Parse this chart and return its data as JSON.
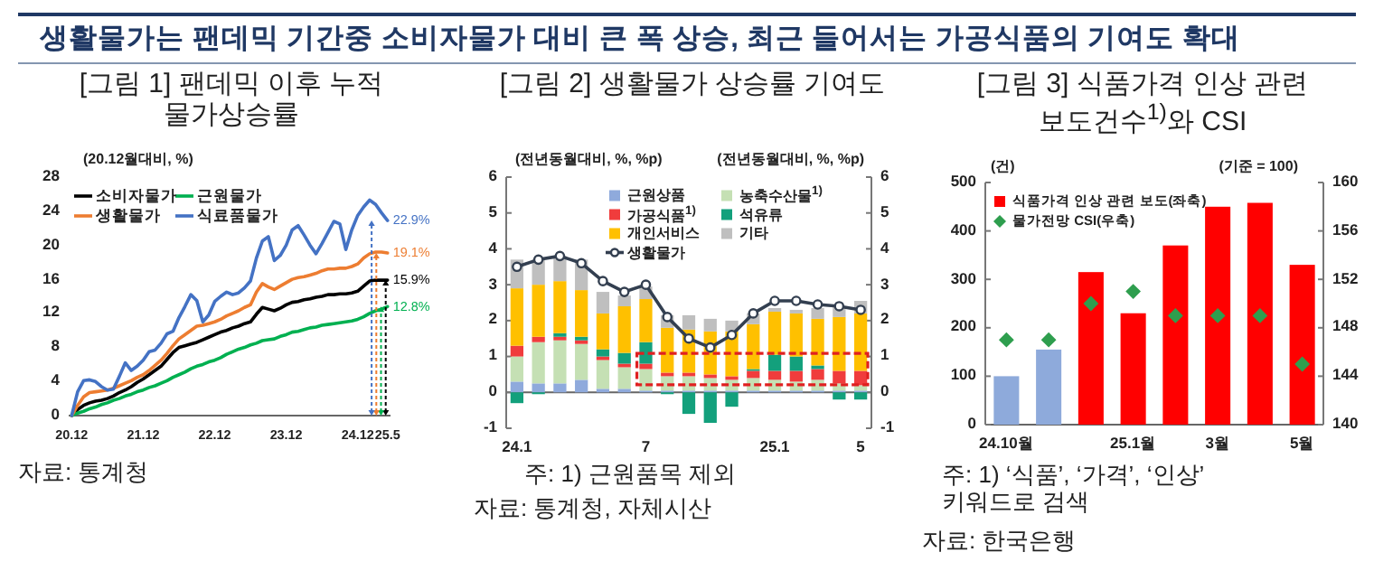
{
  "chart_data": [
    {
      "type": "other",
      "title": "생활물가는 팬데믹 기간중 소비자물가 대비 큰 폭 상승, 최근 들어서는 가공식품의 기여도 확대"
    },
    {
      "type": "line",
      "title": "[그림 1] 팬데믹 이후 누적 물가상승률",
      "ylabel": "(20.12월대비, %)",
      "categories": [
        "20.12",
        null,
        null,
        null,
        null,
        null,
        null,
        null,
        null,
        null,
        null,
        null,
        "21.12",
        null,
        null,
        null,
        null,
        null,
        null,
        null,
        null,
        null,
        null,
        null,
        "22.12",
        null,
        null,
        null,
        null,
        null,
        null,
        null,
        null,
        null,
        null,
        null,
        "23.12",
        null,
        null,
        null,
        null,
        null,
        null,
        null,
        null,
        null,
        null,
        null,
        "24.12",
        null,
        null,
        null,
        null,
        "25.5"
      ],
      "ylim": [
        0,
        28
      ],
      "yticks": [
        0,
        4,
        8,
        12,
        16,
        20,
        24,
        28
      ],
      "legend": "top left",
      "annotations": [
        "자료: 통계청"
      ],
      "series": [
        {
          "name": "소비자물가",
          "color": "#000000",
          "values": [
            0,
            0.7,
            1.2,
            1.5,
            1.7,
            1.8,
            2.0,
            2.3,
            2.7,
            3.0,
            3.4,
            3.9,
            4.3,
            4.8,
            5.3,
            5.8,
            6.6,
            7.4,
            8.0,
            8.2,
            8.4,
            8.6,
            8.9,
            9.2,
            9.5,
            9.8,
            10.0,
            10.3,
            10.5,
            10.8,
            11.0,
            11.9,
            12.7,
            12.5,
            12.3,
            12.6,
            13.0,
            13.3,
            13.4,
            13.6,
            13.7,
            13.9,
            14.0,
            14.2,
            14.2,
            14.3,
            14.3,
            14.4,
            14.6,
            15.2,
            15.8,
            15.9,
            15.9,
            15.9
          ],
          "value_labels": [
            null,
            null,
            null,
            null,
            null,
            null,
            null,
            null,
            null,
            null,
            null,
            null,
            null,
            null,
            null,
            null,
            null,
            null,
            null,
            null,
            null,
            null,
            null,
            null,
            null,
            null,
            null,
            null,
            null,
            null,
            null,
            null,
            null,
            null,
            null,
            null,
            null,
            null,
            null,
            null,
            null,
            null,
            null,
            null,
            null,
            null,
            null,
            null,
            null,
            null,
            null,
            null,
            null,
            "15.9%"
          ]
        },
        {
          "name": "근원물가",
          "color": "#00b050",
          "values": [
            0,
            0.3,
            0.5,
            0.8,
            1.0,
            1.3,
            1.5,
            1.8,
            2.0,
            2.3,
            2.5,
            2.8,
            3.0,
            3.3,
            3.5,
            3.8,
            4.1,
            4.5,
            4.8,
            5.1,
            5.5,
            5.8,
            6.0,
            6.3,
            6.5,
            6.8,
            7.2,
            7.5,
            7.8,
            8.0,
            8.3,
            8.5,
            8.8,
            8.9,
            9.0,
            9.3,
            9.5,
            9.8,
            9.9,
            10.1,
            10.3,
            10.4,
            10.6,
            10.7,
            10.8,
            10.9,
            11.0,
            11.1,
            11.3,
            11.6,
            12.0,
            12.3,
            12.5,
            12.8
          ],
          "value_labels": [
            null,
            null,
            null,
            null,
            null,
            null,
            null,
            null,
            null,
            null,
            null,
            null,
            null,
            null,
            null,
            null,
            null,
            null,
            null,
            null,
            null,
            null,
            null,
            null,
            null,
            null,
            null,
            null,
            null,
            null,
            null,
            null,
            null,
            null,
            null,
            null,
            null,
            null,
            null,
            null,
            null,
            null,
            null,
            null,
            null,
            null,
            null,
            null,
            null,
            null,
            null,
            null,
            null,
            "12.8%"
          ]
        },
        {
          "name": "생활물가",
          "color": "#ed7d31",
          "values": [
            0,
            1.2,
            2.2,
            2.7,
            2.8,
            2.9,
            3.0,
            3.2,
            3.5,
            3.8,
            4.1,
            4.5,
            4.8,
            5.3,
            5.9,
            6.5,
            7.3,
            8.2,
            9.0,
            9.5,
            10.0,
            10.5,
            10.6,
            10.8,
            11.0,
            11.3,
            11.7,
            12.0,
            12.3,
            12.7,
            13.0,
            14.5,
            15.5,
            15.1,
            14.8,
            15.2,
            15.6,
            16.0,
            16.2,
            16.3,
            16.5,
            16.7,
            17.0,
            17.2,
            17.2,
            17.3,
            17.3,
            17.5,
            17.8,
            18.5,
            19.0,
            19.2,
            19.2,
            19.1
          ],
          "value_labels": [
            null,
            null,
            null,
            null,
            null,
            null,
            null,
            null,
            null,
            null,
            null,
            null,
            null,
            null,
            null,
            null,
            null,
            null,
            null,
            null,
            null,
            null,
            null,
            null,
            null,
            null,
            null,
            null,
            null,
            null,
            null,
            null,
            null,
            null,
            null,
            null,
            null,
            null,
            null,
            null,
            null,
            null,
            null,
            null,
            null,
            null,
            null,
            null,
            null,
            null,
            null,
            null,
            null,
            "19.1%"
          ]
        },
        {
          "name": "식료품물가",
          "color": "#4472c4",
          "values": [
            0,
            2.8,
            4.1,
            4.2,
            4.0,
            3.4,
            3.0,
            3.1,
            4.6,
            6.2,
            5.3,
            5.8,
            6.5,
            7.5,
            7.7,
            8.5,
            9.6,
            9.9,
            11.5,
            12.8,
            14.2,
            13.5,
            11.0,
            11.8,
            13.4,
            14.0,
            14.5,
            14.2,
            14.4,
            15.0,
            15.8,
            18.5,
            20.5,
            21.0,
            18.2,
            18.8,
            20.0,
            21.8,
            22.3,
            21.2,
            20.0,
            19.0,
            20.2,
            21.5,
            22.8,
            22.5,
            19.5,
            21.8,
            23.5,
            24.5,
            25.3,
            24.8,
            23.8,
            22.9
          ],
          "value_labels": [
            null,
            null,
            null,
            null,
            null,
            null,
            null,
            null,
            null,
            null,
            null,
            null,
            null,
            null,
            null,
            null,
            null,
            null,
            null,
            null,
            null,
            null,
            null,
            null,
            null,
            null,
            null,
            null,
            null,
            null,
            null,
            null,
            null,
            null,
            null,
            null,
            null,
            null,
            null,
            null,
            null,
            null,
            null,
            null,
            null,
            null,
            null,
            null,
            null,
            null,
            null,
            null,
            null,
            "22.9%"
          ]
        }
      ]
    },
    {
      "type": "bar",
      "stacked": true,
      "title": "[그림 2] 생활물가 상승률 기여도",
      "ylabel": "(전년동월대비, %, %p)",
      "y2label": "(전년동월대비, %, %p)",
      "categories": [
        "24.1",
        null,
        null,
        null,
        null,
        null,
        "7",
        null,
        null,
        null,
        null,
        null,
        "25.1",
        null,
        null,
        null,
        "5"
      ],
      "ylim": [
        -1,
        6
      ],
      "yticks": [
        -1,
        0,
        1,
        2,
        3,
        4,
        5,
        6
      ],
      "y2lim": [
        -1,
        6
      ],
      "y2ticks": [
        -1,
        0,
        1,
        2,
        3,
        4,
        5,
        6
      ],
      "legend": "top",
      "annotations": [
        "주: 1) 근원품목 제외",
        "자료: 통계청, 자체시산"
      ],
      "series": [
        {
          "name": "근원상품",
          "color": "#8faadc",
          "values": [
            0.3,
            0.25,
            0.25,
            0.35,
            0.1,
            0.1,
            0.05,
            0.05,
            0.05,
            0.05,
            0.05,
            0.05,
            0.05,
            0.05,
            0.05,
            0.05,
            0.05
          ]
        },
        {
          "name": "농축수산물$^{1)}$",
          "color": "#c5e0b4",
          "values": [
            0.7,
            1.15,
            1.2,
            1.0,
            0.8,
            0.6,
            0.6,
            0.4,
            0.4,
            0.35,
            0.3,
            0.35,
            0.3,
            0.25,
            0.3,
            0.2,
            0.15
          ]
        },
        {
          "name": "가공식품$^{1)}$",
          "color": "#f03c3c",
          "values": [
            0.3,
            0.15,
            0.1,
            0.1,
            0.1,
            0.1,
            0.15,
            0.1,
            0.1,
            0.1,
            0.1,
            0.2,
            0.25,
            0.3,
            0.3,
            0.35,
            0.4
          ]
        },
        {
          "name": "석유류",
          "color": "#13a07c",
          "values": [
            -0.3,
            -0.05,
            0.1,
            0.1,
            0.2,
            0.3,
            0.6,
            -0.05,
            -0.6,
            -0.85,
            -0.4,
            0.05,
            0.45,
            0.4,
            0.1,
            -0.2,
            -0.2
          ]
        },
        {
          "name": "개인서비스",
          "color": "#ffc000",
          "values": [
            1.6,
            1.45,
            1.45,
            1.3,
            1.0,
            1.3,
            1.2,
            1.25,
            1.2,
            1.2,
            1.25,
            1.25,
            1.2,
            1.2,
            1.3,
            1.5,
            1.6
          ]
        },
        {
          "name": "기타",
          "color": "#bfbfbf",
          "values": [
            0.8,
            0.7,
            0.7,
            0.85,
            0.6,
            0.3,
            0.35,
            0.35,
            0.4,
            0.35,
            0.3,
            0.3,
            0.1,
            0.1,
            0.3,
            0.3,
            0.35
          ]
        },
        {
          "name": "생활물가",
          "type": "line",
          "marker": "circle",
          "color": "#333f50",
          "values": [
            3.5,
            3.7,
            3.8,
            3.6,
            3.1,
            2.8,
            3.0,
            2.1,
            1.5,
            1.25,
            1.6,
            2.2,
            2.55,
            2.55,
            2.45,
            2.4,
            2.3
          ]
        }
      ]
    },
    {
      "type": "bar",
      "title": "[그림 3] 식품가격 인상 관련 보도건수$^{1)}$와 CSI",
      "ylabel": "(건)",
      "y2label": "(기준 = 100)",
      "categories": [
        "24.10월",
        null,
        null,
        "25.1월",
        null,
        "3월",
        null,
        "5월"
      ],
      "ylim": [
        0,
        500
      ],
      "yticks": [
        0,
        100,
        200,
        300,
        400,
        500
      ],
      "y2lim": [
        140,
        160
      ],
      "y2ticks": [
        140,
        144,
        148,
        152,
        156,
        160
      ],
      "legend": "top left",
      "annotations": [
        "주: 1) ‘식품’, ‘가격’, ‘인상’ 키워드로 검색",
        "자료: 한국은행"
      ],
      "series": [
        {
          "name": "식품가격 인상 관련 보도(좌축)",
          "color": "#ff0000",
          "colors": [
            "#8eaadb",
            "#8eaadb",
            "#ff0000",
            "#ff0000",
            "#ff0000",
            "#ff0000",
            "#ff0000",
            "#ff0000"
          ],
          "values": [
            100,
            155,
            315,
            230,
            370,
            450,
            458,
            330
          ]
        },
        {
          "name": "물가전망 CSI(우축)",
          "type": "scatter",
          "axis": "y2",
          "marker": "diamond",
          "color": "#2e9e4e",
          "values": [
            147,
            147,
            150,
            151,
            149,
            149,
            149,
            145
          ]
        }
      ]
    }
  ]
}
